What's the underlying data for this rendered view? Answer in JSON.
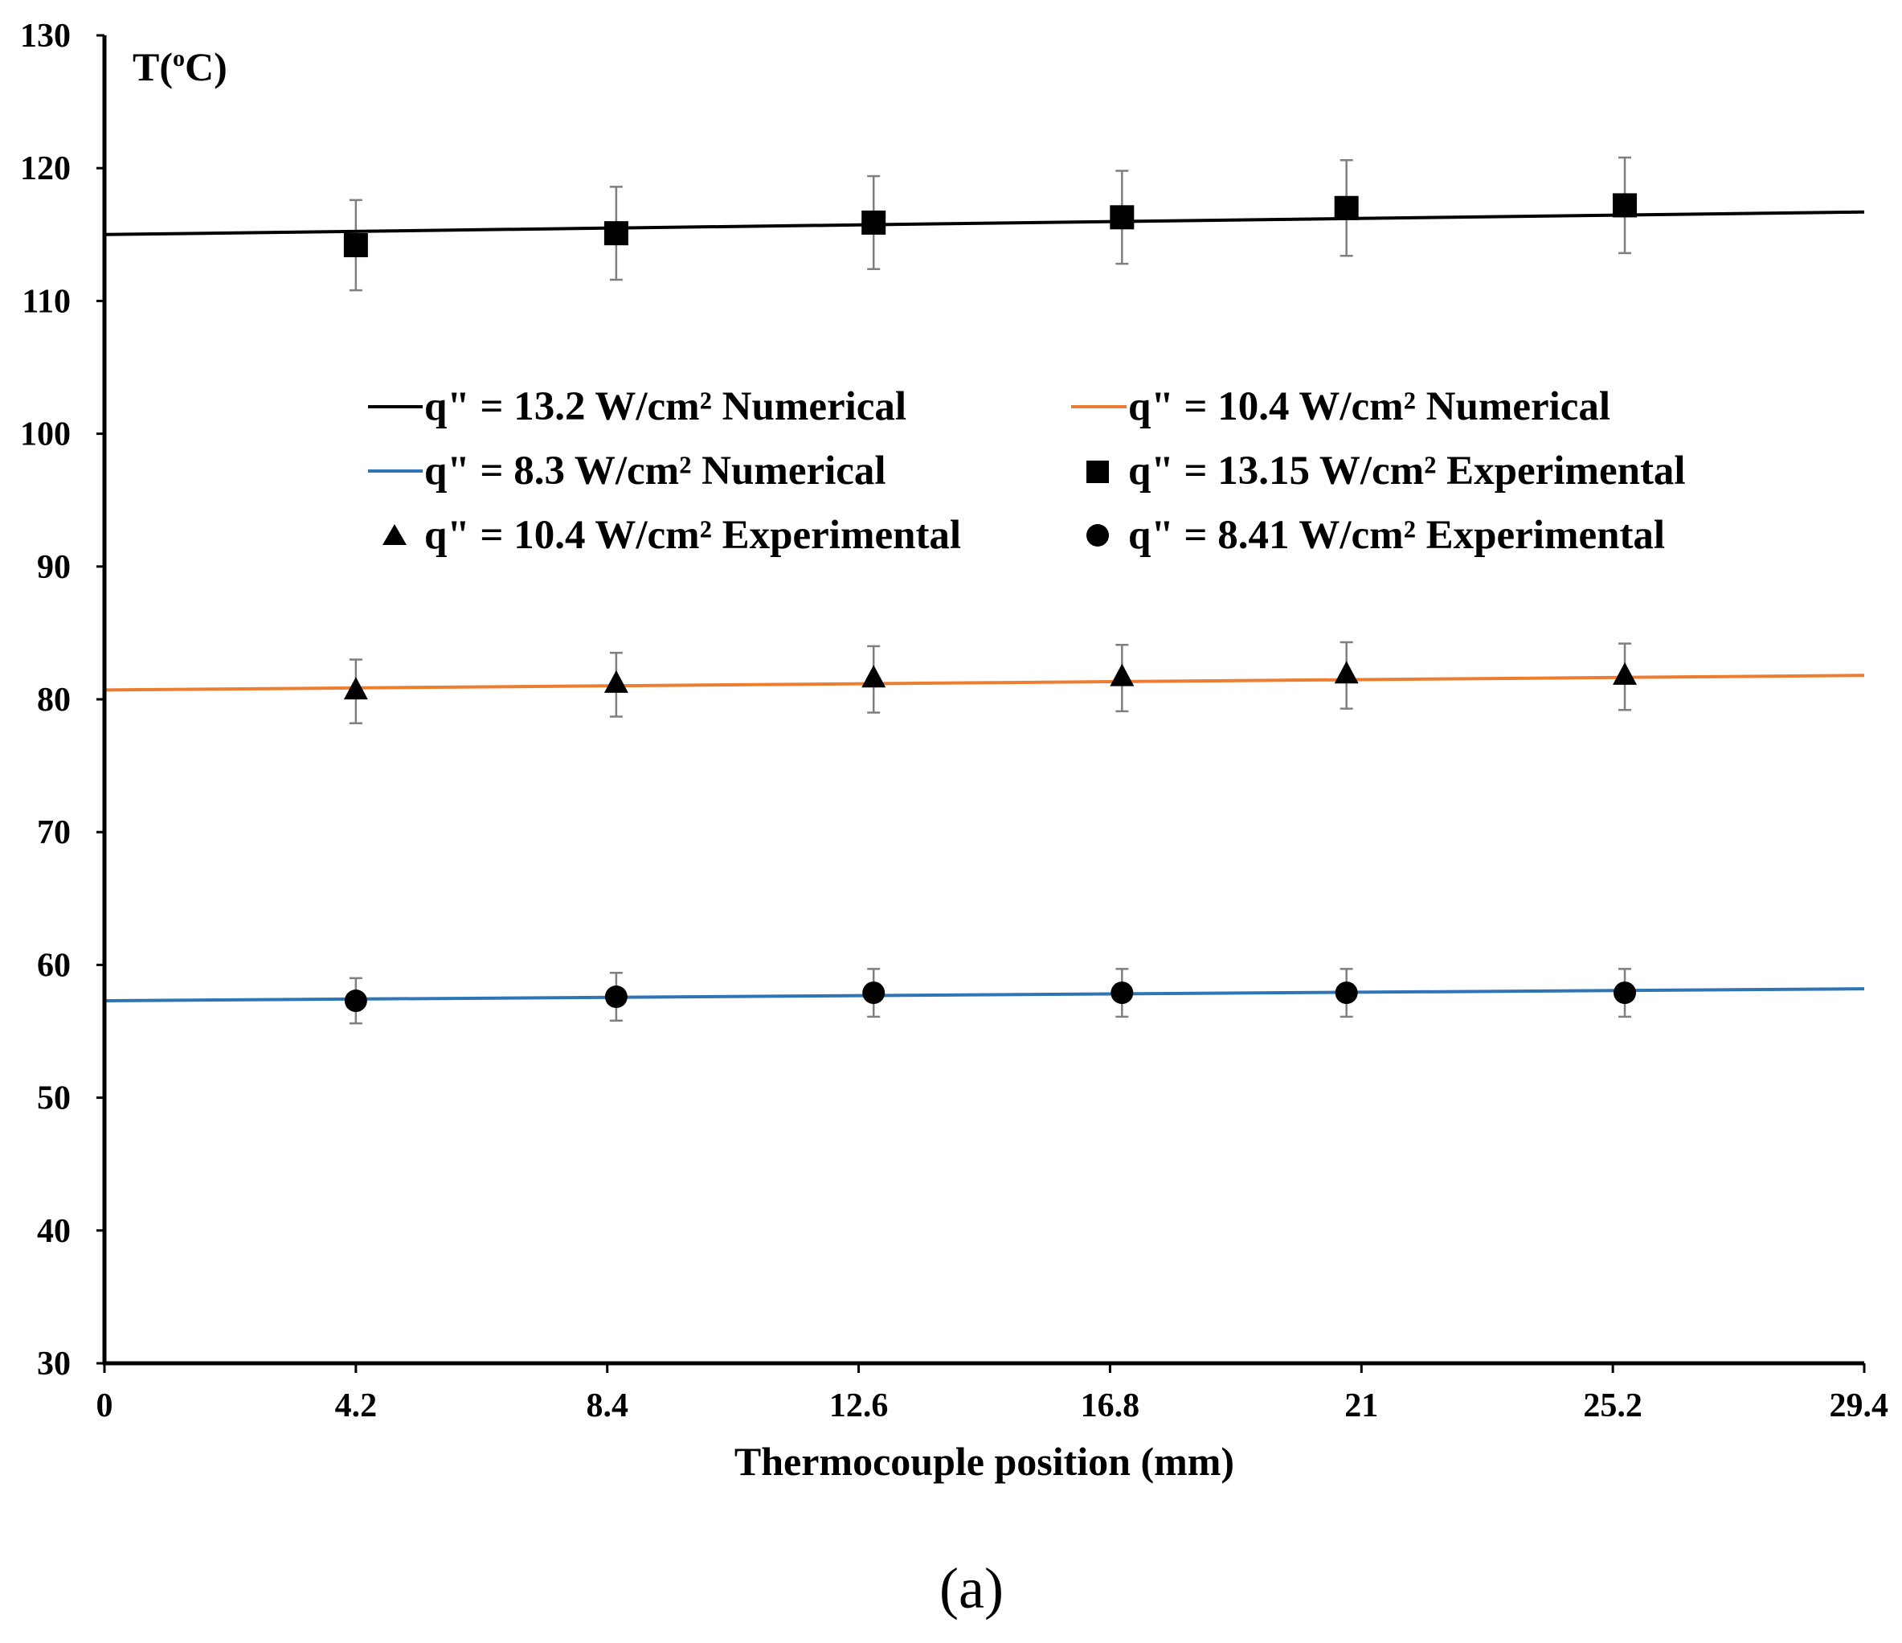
{
  "chart_data": {
    "type": "line",
    "title": "",
    "ylabel": "T(",
    "ylabel_sup": "o",
    "ylabel_suffix": "C)",
    "xlabel": "Thermocouple position (mm)",
    "panel_label": "(a)",
    "xlim": [
      0,
      29.4
    ],
    "ylim": [
      30,
      130
    ],
    "x_ticks": [
      0,
      4.2,
      8.4,
      12.6,
      16.8,
      21,
      25.2,
      29.4
    ],
    "x_tick_labels": [
      "0",
      "4.2",
      "8.4",
      "12.6",
      "16.8",
      "21",
      "25.2",
      "29.4"
    ],
    "y_ticks": [
      30,
      40,
      50,
      60,
      70,
      80,
      90,
      100,
      110,
      120,
      130
    ],
    "y_tick_labels": [
      "30",
      "40",
      "50",
      "60",
      "70",
      "80",
      "90",
      "100",
      "110",
      "120",
      "130"
    ],
    "grid": false,
    "legend_position": "center",
    "series": [
      {
        "name": "q\" = 13.2 W/cm² Numerical",
        "kind": "line",
        "color": "#000000",
        "x": [
          0,
          29.4
        ],
        "y": [
          115.0,
          116.7
        ]
      },
      {
        "name": "q\" = 10.4 W/cm² Numerical",
        "kind": "line",
        "color": "#ED7D31",
        "x": [
          0,
          29.4
        ],
        "y": [
          80.7,
          81.8
        ]
      },
      {
        "name": "q\" = 8.3 W/cm² Numerical",
        "kind": "line",
        "color": "#2E75B6",
        "x": [
          0,
          29.4
        ],
        "y": [
          57.3,
          58.2
        ]
      },
      {
        "name": "q\" = 13.15 W/cm² Experimental",
        "kind": "marker",
        "marker": "square",
        "color": "#000000",
        "x": [
          4.2,
          8.55,
          12.85,
          17.0,
          20.75,
          25.4
        ],
        "y": [
          114.2,
          115.1,
          115.9,
          116.3,
          117.0,
          117.2
        ],
        "error": [
          3.4,
          3.5,
          3.5,
          3.5,
          3.6,
          3.6
        ]
      },
      {
        "name": "q\" = 10.4 W/cm² Experimental",
        "kind": "marker",
        "marker": "triangle",
        "color": "#000000",
        "x": [
          4.2,
          8.55,
          12.85,
          17.0,
          20.75,
          25.4
        ],
        "y": [
          80.6,
          81.1,
          81.5,
          81.6,
          81.8,
          81.7
        ],
        "error": [
          2.4,
          2.4,
          2.5,
          2.5,
          2.5,
          2.5
        ]
      },
      {
        "name": "q\" = 8.41 W/cm² Experimental",
        "kind": "marker",
        "marker": "circle",
        "color": "#000000",
        "x": [
          4.2,
          8.55,
          12.85,
          17.0,
          20.75,
          25.4
        ],
        "y": [
          57.3,
          57.6,
          57.9,
          57.9,
          57.9,
          57.9
        ],
        "error": [
          1.7,
          1.8,
          1.8,
          1.8,
          1.8,
          1.8
        ]
      }
    ]
  }
}
